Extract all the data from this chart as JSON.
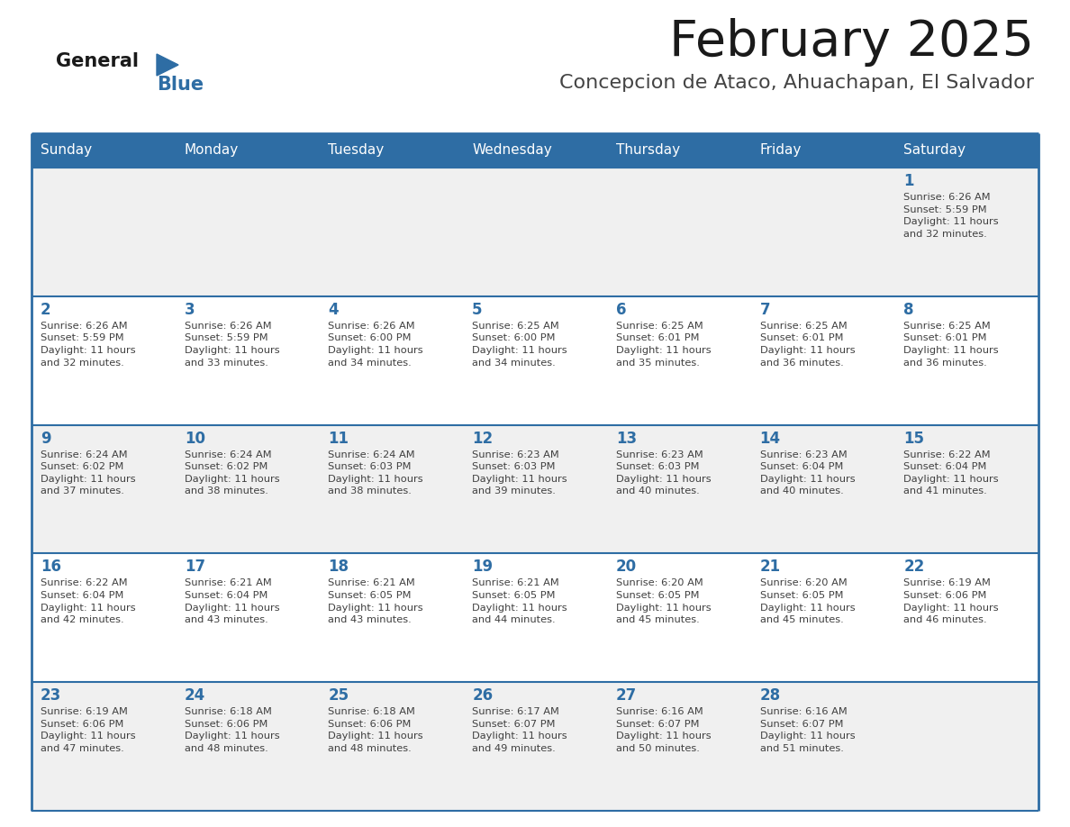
{
  "title": "February 2025",
  "subtitle": "Concepcion de Ataco, Ahuachapan, El Salvador",
  "days_of_week": [
    "Sunday",
    "Monday",
    "Tuesday",
    "Wednesday",
    "Thursday",
    "Friday",
    "Saturday"
  ],
  "header_bg": "#2E6DA4",
  "header_text": "#FFFFFF",
  "cell_bg_odd": "#F0F0F0",
  "cell_bg_even": "#FFFFFF",
  "day_number_color": "#2E6DA4",
  "info_text_color": "#404040",
  "border_color": "#2E6DA4",
  "title_color": "#1a1a1a",
  "subtitle_color": "#444444",
  "logo_text_color": "#1a1a1a",
  "logo_blue_color": "#2E6DA4",
  "calendar": [
    [
      null,
      null,
      null,
      null,
      null,
      null,
      1
    ],
    [
      2,
      3,
      4,
      5,
      6,
      7,
      8
    ],
    [
      9,
      10,
      11,
      12,
      13,
      14,
      15
    ],
    [
      16,
      17,
      18,
      19,
      20,
      21,
      22
    ],
    [
      23,
      24,
      25,
      26,
      27,
      28,
      null
    ]
  ],
  "sunrise": {
    "1": "6:26 AM",
    "2": "6:26 AM",
    "3": "6:26 AM",
    "4": "6:26 AM",
    "5": "6:25 AM",
    "6": "6:25 AM",
    "7": "6:25 AM",
    "8": "6:25 AM",
    "9": "6:24 AM",
    "10": "6:24 AM",
    "11": "6:24 AM",
    "12": "6:23 AM",
    "13": "6:23 AM",
    "14": "6:23 AM",
    "15": "6:22 AM",
    "16": "6:22 AM",
    "17": "6:21 AM",
    "18": "6:21 AM",
    "19": "6:21 AM",
    "20": "6:20 AM",
    "21": "6:20 AM",
    "22": "6:19 AM",
    "23": "6:19 AM",
    "24": "6:18 AM",
    "25": "6:18 AM",
    "26": "6:17 AM",
    "27": "6:16 AM",
    "28": "6:16 AM"
  },
  "sunset": {
    "1": "5:59 PM",
    "2": "5:59 PM",
    "3": "5:59 PM",
    "4": "6:00 PM",
    "5": "6:00 PM",
    "6": "6:01 PM",
    "7": "6:01 PM",
    "8": "6:01 PM",
    "9": "6:02 PM",
    "10": "6:02 PM",
    "11": "6:03 PM",
    "12": "6:03 PM",
    "13": "6:03 PM",
    "14": "6:04 PM",
    "15": "6:04 PM",
    "16": "6:04 PM",
    "17": "6:04 PM",
    "18": "6:05 PM",
    "19": "6:05 PM",
    "20": "6:05 PM",
    "21": "6:05 PM",
    "22": "6:06 PM",
    "23": "6:06 PM",
    "24": "6:06 PM",
    "25": "6:06 PM",
    "26": "6:07 PM",
    "27": "6:07 PM",
    "28": "6:07 PM"
  },
  "daylight": {
    "1": "11 hours\nand 32 minutes.",
    "2": "11 hours\nand 32 minutes.",
    "3": "11 hours\nand 33 minutes.",
    "4": "11 hours\nand 34 minutes.",
    "5": "11 hours\nand 34 minutes.",
    "6": "11 hours\nand 35 minutes.",
    "7": "11 hours\nand 36 minutes.",
    "8": "11 hours\nand 36 minutes.",
    "9": "11 hours\nand 37 minutes.",
    "10": "11 hours\nand 38 minutes.",
    "11": "11 hours\nand 38 minutes.",
    "12": "11 hours\nand 39 minutes.",
    "13": "11 hours\nand 40 minutes.",
    "14": "11 hours\nand 40 minutes.",
    "15": "11 hours\nand 41 minutes.",
    "16": "11 hours\nand 42 minutes.",
    "17": "11 hours\nand 43 minutes.",
    "18": "11 hours\nand 43 minutes.",
    "19": "11 hours\nand 44 minutes.",
    "20": "11 hours\nand 45 minutes.",
    "21": "11 hours\nand 45 minutes.",
    "22": "11 hours\nand 46 minutes.",
    "23": "11 hours\nand 47 minutes.",
    "24": "11 hours\nand 48 minutes.",
    "25": "11 hours\nand 48 minutes.",
    "26": "11 hours\nand 49 minutes.",
    "27": "11 hours\nand 50 minutes.",
    "28": "11 hours\nand 51 minutes."
  }
}
